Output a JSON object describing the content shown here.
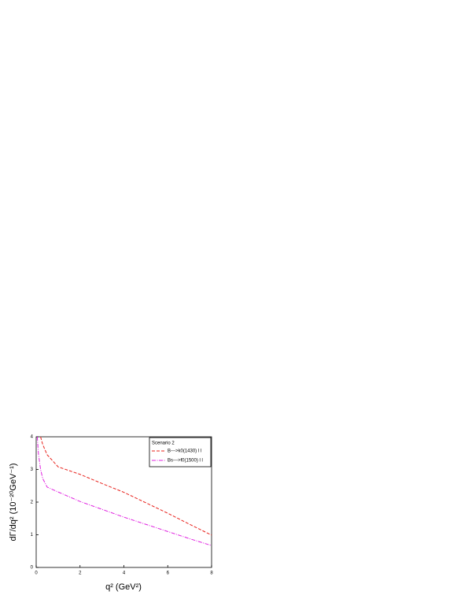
{
  "chart_data": {
    "type": "line",
    "xlabel": "q² (GeV²)",
    "ylabel": "dΓ/dq²  (10⁻²⁰GeV⁻¹)",
    "legend_title": "Scenario 2",
    "legend": "upper right",
    "x": [
      0.05,
      0.1,
      0.2,
      0.3,
      0.5,
      1,
      2,
      3,
      4,
      5,
      6,
      7,
      8
    ],
    "series": [
      {
        "name": "B--->k0(1430) l l",
        "color": "#e8201a",
        "style": "dashed",
        "values": [
          null,
          null,
          4.0,
          3.76,
          3.45,
          3.08,
          2.85,
          2.57,
          2.3,
          1.98,
          1.66,
          1.32,
          0.99
        ]
      },
      {
        "name": "Bs--->f0(1500) l l",
        "color": "#e020e0",
        "style": "dashdot",
        "values": [
          4.0,
          3.5,
          3.0,
          2.72,
          2.46,
          2.31,
          2.02,
          1.78,
          1.54,
          1.32,
          1.1,
          0.88,
          0.67
        ]
      }
    ],
    "xlim": [
      0,
      8
    ],
    "xticks": [
      0,
      2,
      4,
      6,
      8
    ],
    "ylim": [
      0,
      4
    ],
    "yticks": [
      0,
      1,
      2,
      3,
      4
    ]
  }
}
